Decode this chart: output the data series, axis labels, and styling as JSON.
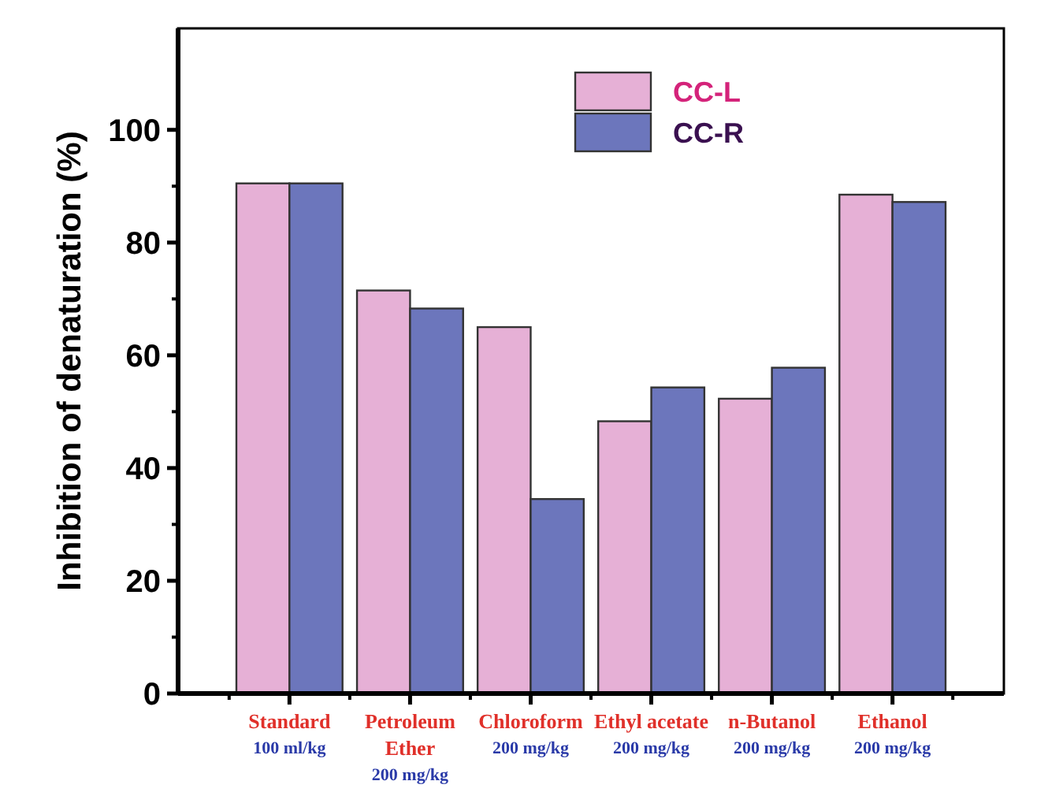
{
  "chart_data": {
    "type": "bar",
    "ylabel": "Inhibition of denaturation (%)",
    "categories": [
      "Standard\n100 ml/kg",
      "Petroleum\nEther\n200 mg/kg",
      "Chloroform\n200 mg/kg",
      "Ethyl acetate\n200 mg/kg",
      "n-Butanol\n200 mg/kg",
      "Ethanol\n200 mg/kg"
    ],
    "series": [
      {
        "name": "CC-L",
        "color": "#e6b0d6",
        "values": [
          90.5,
          71.5,
          65,
          48.3,
          52.3,
          88.5
        ]
      },
      {
        "name": "CC-R",
        "color": "#6c76bc",
        "values": [
          90.5,
          68.3,
          34.5,
          54.3,
          57.8,
          87.2
        ]
      }
    ],
    "ylim": [
      0,
      118
    ],
    "yticks": [
      0,
      20,
      40,
      60,
      80,
      100
    ],
    "grid": false,
    "legend": "top"
  }
}
